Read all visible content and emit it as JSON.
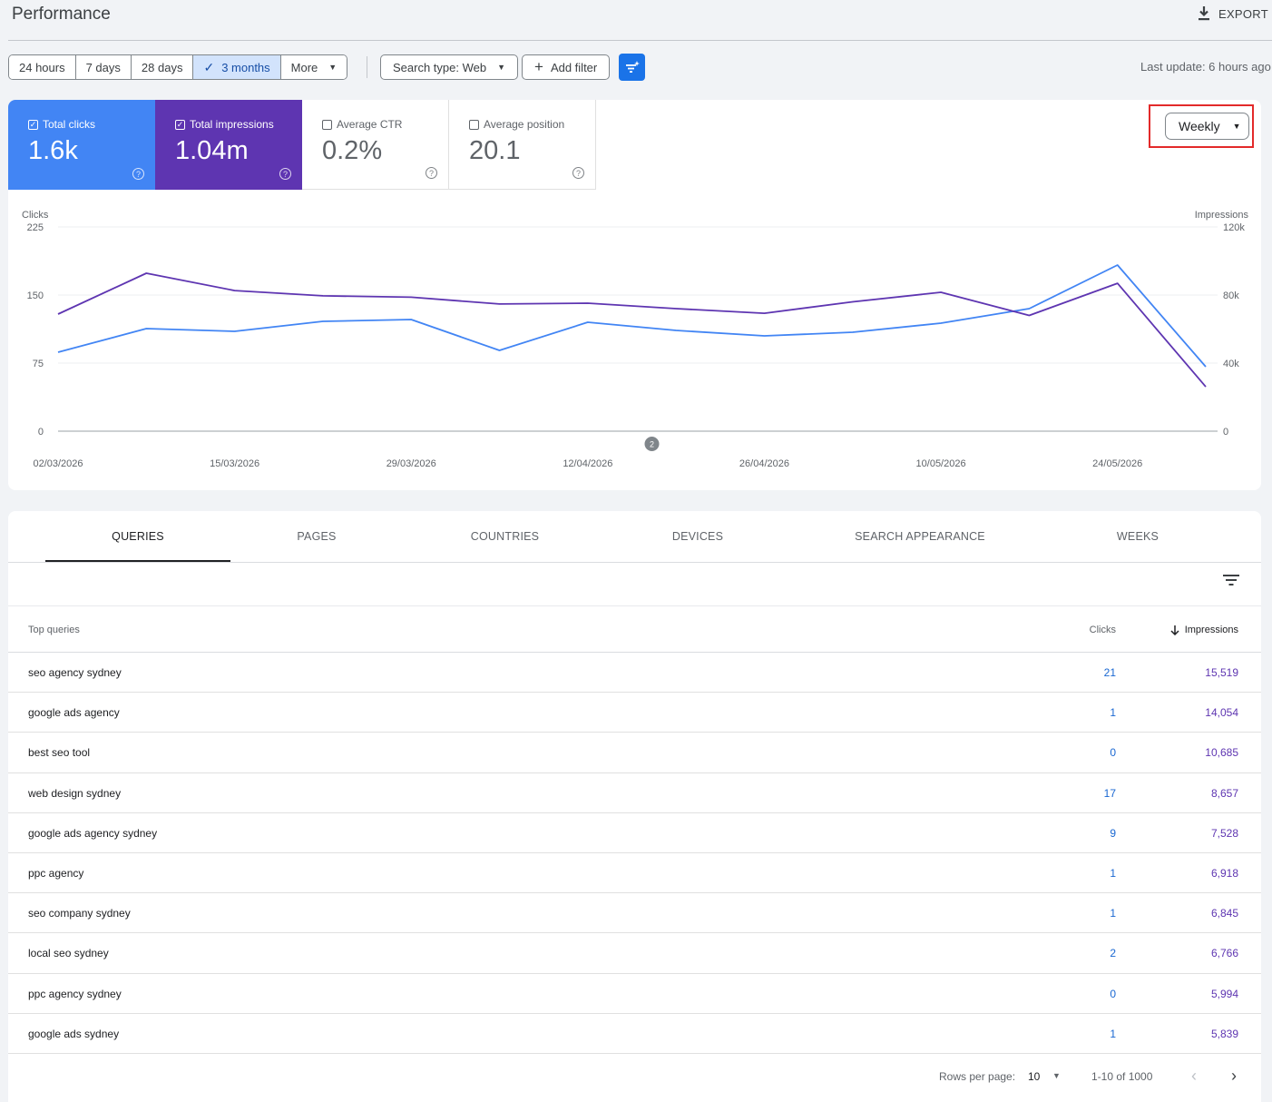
{
  "header": {
    "title": "Performance",
    "export_label": "EXPORT"
  },
  "filters": {
    "date_ranges": [
      "24 hours",
      "7 days",
      "28 days",
      "3 months",
      "More"
    ],
    "active_range": "3 months",
    "search_type": "Search type: Web",
    "add_filter": "Add filter",
    "last_update": "Last update: 6 hours ago"
  },
  "metrics": {
    "clicks": {
      "label": "Total clicks",
      "value": "1.6k",
      "checked": true
    },
    "impressions": {
      "label": "Total impressions",
      "value": "1.04m",
      "checked": true
    },
    "ctr": {
      "label": "Average CTR",
      "value": "0.2%",
      "checked": false
    },
    "position": {
      "label": "Average position",
      "value": "20.1",
      "checked": false
    }
  },
  "granularity": "Weekly",
  "colors": {
    "clicks": "#4285f4",
    "impressions": "#5e35b1",
    "highlight": "#e32a2a",
    "accent": "#1a73e8"
  },
  "chart_data": {
    "type": "line",
    "left_axis_label": "Clicks",
    "right_axis_label": "Impressions",
    "left_ticks": [
      "225",
      "150",
      "75",
      "0"
    ],
    "right_ticks": [
      "120k",
      "80k",
      "40k",
      "0"
    ],
    "ylim_left": [
      0,
      225
    ],
    "ylim_right": [
      0,
      120000
    ],
    "x_tick_labels": [
      "02/03/2026",
      "15/03/2026",
      "29/03/2026",
      "12/04/2026",
      "26/04/2026",
      "10/05/2026",
      "24/05/2026"
    ],
    "annotation_badge": "2",
    "x": [
      "02/03/2026",
      "09/03/2026",
      "16/03/2026",
      "23/03/2026",
      "30/03/2026",
      "06/04/2026",
      "13/04/2026",
      "20/04/2026",
      "27/04/2026",
      "04/05/2026",
      "11/05/2026",
      "18/05/2026",
      "25/05/2026",
      "01/06/2026"
    ],
    "series": [
      {
        "name": "Clicks",
        "axis": "left",
        "values": [
          87,
          113,
          110,
          121,
          123,
          89,
          120,
          111,
          105,
          109,
          119,
          135,
          183,
          71
        ]
      },
      {
        "name": "Impressions",
        "axis": "right",
        "values": [
          68800,
          92800,
          82600,
          79500,
          78700,
          74700,
          75200,
          72000,
          69300,
          76000,
          81600,
          68000,
          86900,
          26100
        ]
      }
    ]
  },
  "tabs": [
    "QUERIES",
    "PAGES",
    "COUNTRIES",
    "DEVICES",
    "SEARCH APPEARANCE",
    "WEEKS"
  ],
  "table": {
    "headers": {
      "query": "Top queries",
      "clicks": "Clicks",
      "impressions": "Impressions"
    },
    "rows": [
      {
        "query": "seo agency sydney",
        "clicks": "21",
        "impressions": "15,519"
      },
      {
        "query": "google ads agency",
        "clicks": "1",
        "impressions": "14,054"
      },
      {
        "query": "best seo tool",
        "clicks": "0",
        "impressions": "10,685"
      },
      {
        "query": "web design sydney",
        "clicks": "17",
        "impressions": "8,657"
      },
      {
        "query": "google ads agency sydney",
        "clicks": "9",
        "impressions": "7,528"
      },
      {
        "query": "ppc agency",
        "clicks": "1",
        "impressions": "6,918"
      },
      {
        "query": "seo company sydney",
        "clicks": "1",
        "impressions": "6,845"
      },
      {
        "query": "local seo sydney",
        "clicks": "2",
        "impressions": "6,766"
      },
      {
        "query": "ppc agency sydney",
        "clicks": "0",
        "impressions": "5,994"
      },
      {
        "query": "google ads sydney",
        "clicks": "1",
        "impressions": "5,839"
      }
    ]
  },
  "pagination": {
    "rows_per_page_label": "Rows per page:",
    "rows_per_page": "10",
    "range": "1-10 of 1000"
  }
}
